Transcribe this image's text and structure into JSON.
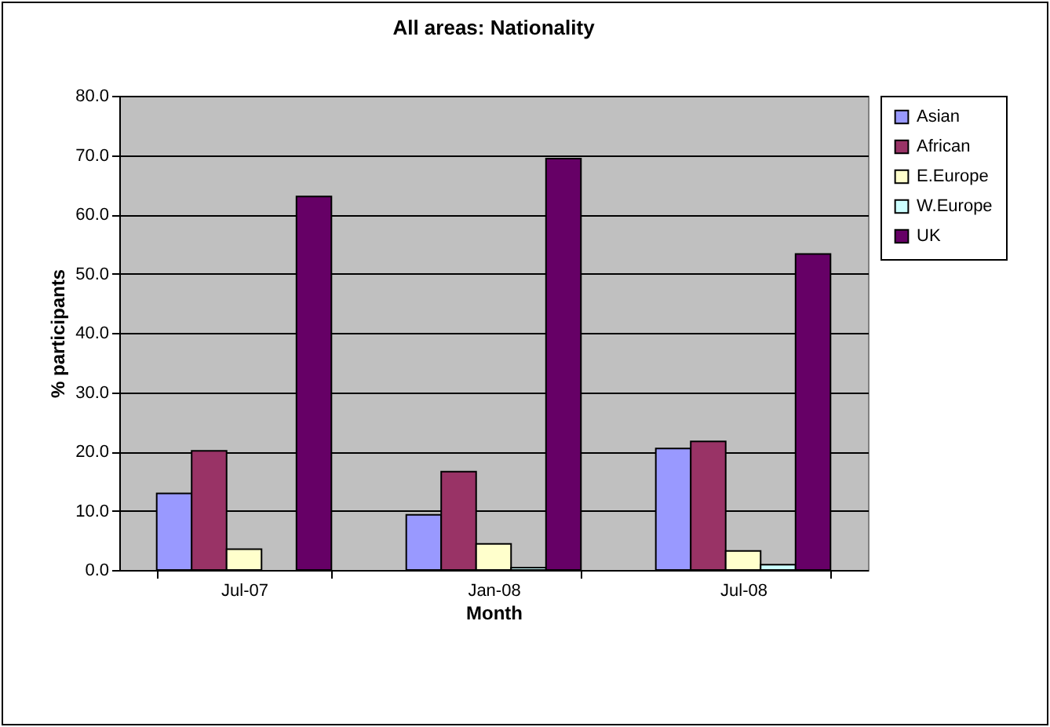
{
  "chart_data": {
    "type": "bar",
    "title": "All areas: Nationality",
    "xlabel": "Month",
    "ylabel": "% participants",
    "categories": [
      "Jul-07",
      "Jan-08",
      "Jul-08"
    ],
    "series": [
      {
        "name": "Asian",
        "color": "#9999ff",
        "values": [
          12.9,
          9.3,
          20.5
        ]
      },
      {
        "name": "African",
        "color": "#993366",
        "values": [
          20.1,
          16.6,
          21.7
        ]
      },
      {
        "name": "E.Europe",
        "color": "#ffffcc",
        "values": [
          3.5,
          4.4,
          3.2
        ]
      },
      {
        "name": "W.Europe",
        "color": "#ccffff",
        "values": [
          null,
          0.4,
          0.9
        ]
      },
      {
        "name": "UK",
        "color": "#660066",
        "values": [
          63.0,
          69.4,
          53.3
        ]
      }
    ],
    "ylim": [
      0,
      80
    ],
    "yticks": [
      {
        "value": 0,
        "label": "0.0"
      },
      {
        "value": 10,
        "label": "10.0"
      },
      {
        "value": 20,
        "label": "20.0"
      },
      {
        "value": 30,
        "label": "30.0"
      },
      {
        "value": 40,
        "label": "40.0"
      },
      {
        "value": 50,
        "label": "50.0"
      },
      {
        "value": 60,
        "label": "60.0"
      },
      {
        "value": 70,
        "label": "70.0"
      },
      {
        "value": 80,
        "label": "80.0"
      }
    ],
    "grid": "y",
    "legend": "right"
  }
}
